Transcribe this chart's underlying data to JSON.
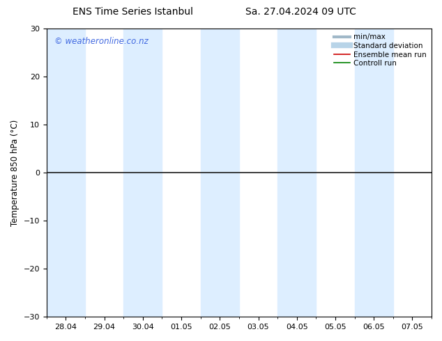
{
  "title_left": "ENS Time Series Istanbul",
  "title_right": "Sa. 27.04.2024 09 UTC",
  "ylabel": "Temperature 850 hPa (°C)",
  "watermark": "© weatheronline.co.nz",
  "ylim": [
    -30,
    30
  ],
  "yticks": [
    -30,
    -20,
    -10,
    0,
    10,
    20,
    30
  ],
  "x_labels": [
    "28.04",
    "29.04",
    "30.04",
    "01.05",
    "02.05",
    "03.05",
    "04.05",
    "05.05",
    "06.05",
    "07.05"
  ],
  "x_values": [
    0,
    1,
    2,
    3,
    4,
    5,
    6,
    7,
    8,
    9
  ],
  "x_min": -0.5,
  "x_max": 9.5,
  "shaded_bands": [
    {
      "x_start": -0.5,
      "x_end": 0.5
    },
    {
      "x_start": 1.5,
      "x_end": 2.5
    },
    {
      "x_start": 3.5,
      "x_end": 4.5
    },
    {
      "x_start": 5.5,
      "x_end": 6.5
    },
    {
      "x_start": 7.5,
      "x_end": 8.5
    }
  ],
  "band_color": "#ddeeff",
  "line_y": 0,
  "line_color": "#1a1a1a",
  "line_width": 1.2,
  "bg_color": "#ffffff",
  "legend_items": [
    {
      "label": "min/max",
      "color": "#a0b8c8",
      "lw": 3
    },
    {
      "label": "Standard deviation",
      "color": "#b8d4e8",
      "lw": 6
    },
    {
      "label": "Ensemble mean run",
      "color": "#cc0000",
      "lw": 1.2
    },
    {
      "label": "Controll run",
      "color": "#008000",
      "lw": 1.2
    }
  ],
  "title_fontsize": 10,
  "axis_label_fontsize": 8.5,
  "tick_fontsize": 8,
  "watermark_color": "#4169E1",
  "watermark_fontsize": 8.5,
  "legend_fontsize": 7.5
}
